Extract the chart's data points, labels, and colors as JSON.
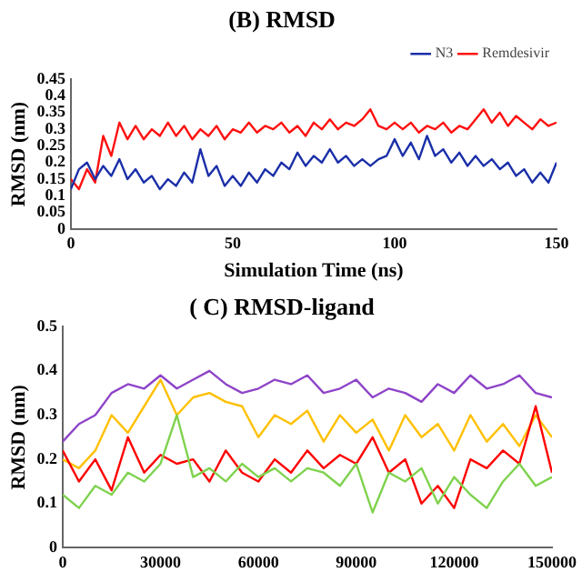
{
  "chart_data": [
    {
      "type": "line",
      "title": "(B) RMSD",
      "xlabel": "Simulation Time (ns)",
      "ylabel": "RMSD (nm)",
      "legend": "top right",
      "grid": false,
      "marker": "none",
      "xlim": [
        0,
        150
      ],
      "xticks": [
        0,
        50,
        100,
        150
      ],
      "ylim": [
        0,
        0.45
      ],
      "yticks": [
        0,
        0.05,
        0.1,
        0.15,
        0.2,
        0.25,
        0.3,
        0.35,
        0.4,
        0.45
      ],
      "x": [
        0,
        2.5,
        5,
        7.5,
        10,
        12.5,
        15,
        17.5,
        20,
        22.5,
        25,
        27.5,
        30,
        32.5,
        35,
        37.5,
        40,
        42.5,
        45,
        47.5,
        50,
        52.5,
        55,
        57.5,
        60,
        62.5,
        65,
        67.5,
        70,
        72.5,
        75,
        77.5,
        80,
        82.5,
        85,
        87.5,
        90,
        92.5,
        95,
        97.5,
        100,
        102.5,
        105,
        107.5,
        110,
        112.5,
        115,
        117.5,
        120,
        122.5,
        125,
        127.5,
        130,
        132.5,
        135,
        137.5,
        140,
        142.5,
        145,
        147.5,
        150
      ],
      "series": [
        {
          "name": "N3",
          "color": "#1a2fa8",
          "values": [
            0.12,
            0.18,
            0.2,
            0.15,
            0.19,
            0.16,
            0.21,
            0.15,
            0.18,
            0.14,
            0.16,
            0.12,
            0.15,
            0.13,
            0.17,
            0.14,
            0.24,
            0.16,
            0.19,
            0.13,
            0.16,
            0.13,
            0.17,
            0.14,
            0.18,
            0.16,
            0.2,
            0.18,
            0.23,
            0.19,
            0.22,
            0.2,
            0.24,
            0.2,
            0.22,
            0.19,
            0.21,
            0.19,
            0.21,
            0.22,
            0.27,
            0.22,
            0.26,
            0.21,
            0.28,
            0.22,
            0.24,
            0.2,
            0.23,
            0.19,
            0.22,
            0.19,
            0.21,
            0.18,
            0.2,
            0.16,
            0.18,
            0.14,
            0.17,
            0.14,
            0.2
          ]
        },
        {
          "name": "Remdesivir",
          "color": "#ff1010",
          "values": [
            0.15,
            0.12,
            0.18,
            0.14,
            0.28,
            0.22,
            0.32,
            0.27,
            0.31,
            0.27,
            0.3,
            0.28,
            0.32,
            0.28,
            0.31,
            0.27,
            0.3,
            0.28,
            0.31,
            0.27,
            0.3,
            0.29,
            0.32,
            0.29,
            0.31,
            0.3,
            0.32,
            0.29,
            0.31,
            0.28,
            0.32,
            0.3,
            0.33,
            0.3,
            0.32,
            0.31,
            0.33,
            0.36,
            0.31,
            0.3,
            0.32,
            0.3,
            0.32,
            0.29,
            0.31,
            0.3,
            0.32,
            0.29,
            0.31,
            0.3,
            0.33,
            0.36,
            0.32,
            0.35,
            0.31,
            0.34,
            0.32,
            0.3,
            0.33,
            0.31,
            0.32
          ]
        }
      ]
    },
    {
      "type": "line",
      "title": "( C) RMSD-ligand",
      "ylabel": "RMSD (nm)",
      "grid": false,
      "marker": "none",
      "xlim": [
        0,
        150000
      ],
      "xticks": [
        0,
        30000,
        60000,
        90000,
        120000,
        150000
      ],
      "ylim": [
        0,
        0.5
      ],
      "yticks": [
        0,
        0.1,
        0.2,
        0.3,
        0.4,
        0.5
      ],
      "x": [
        0,
        5000,
        10000,
        15000,
        20000,
        25000,
        30000,
        35000,
        40000,
        45000,
        50000,
        55000,
        60000,
        65000,
        70000,
        75000,
        80000,
        85000,
        90000,
        95000,
        100000,
        105000,
        110000,
        115000,
        120000,
        125000,
        130000,
        135000,
        140000,
        145000,
        150000
      ],
      "series": [
        {
          "color": "#8e44c8",
          "values": [
            0.24,
            0.28,
            0.3,
            0.35,
            0.37,
            0.36,
            0.39,
            0.36,
            0.38,
            0.4,
            0.37,
            0.35,
            0.36,
            0.38,
            0.37,
            0.39,
            0.35,
            0.36,
            0.38,
            0.34,
            0.36,
            0.35,
            0.33,
            0.37,
            0.35,
            0.39,
            0.36,
            0.37,
            0.39,
            0.35,
            0.34
          ]
        },
        {
          "color": "#7fd24e",
          "values": [
            0.12,
            0.09,
            0.14,
            0.12,
            0.17,
            0.15,
            0.19,
            0.3,
            0.16,
            0.18,
            0.15,
            0.19,
            0.16,
            0.18,
            0.15,
            0.18,
            0.17,
            0.14,
            0.19,
            0.08,
            0.17,
            0.15,
            0.18,
            0.1,
            0.16,
            0.12,
            0.09,
            0.15,
            0.19,
            0.14,
            0.16
          ]
        },
        {
          "color": "#ff0000",
          "values": [
            0.22,
            0.15,
            0.2,
            0.13,
            0.25,
            0.17,
            0.21,
            0.19,
            0.2,
            0.15,
            0.22,
            0.17,
            0.15,
            0.2,
            0.17,
            0.22,
            0.18,
            0.21,
            0.19,
            0.25,
            0.17,
            0.2,
            0.1,
            0.14,
            0.09,
            0.2,
            0.18,
            0.22,
            0.19,
            0.32,
            0.17
          ]
        },
        {
          "color": "#ffc000",
          "values": [
            0.2,
            0.18,
            0.22,
            0.3,
            0.26,
            0.32,
            0.38,
            0.3,
            0.34,
            0.35,
            0.33,
            0.32,
            0.25,
            0.3,
            0.28,
            0.31,
            0.24,
            0.3,
            0.26,
            0.29,
            0.22,
            0.3,
            0.25,
            0.28,
            0.22,
            0.3,
            0.24,
            0.28,
            0.23,
            0.3,
            0.25
          ]
        }
      ]
    }
  ]
}
